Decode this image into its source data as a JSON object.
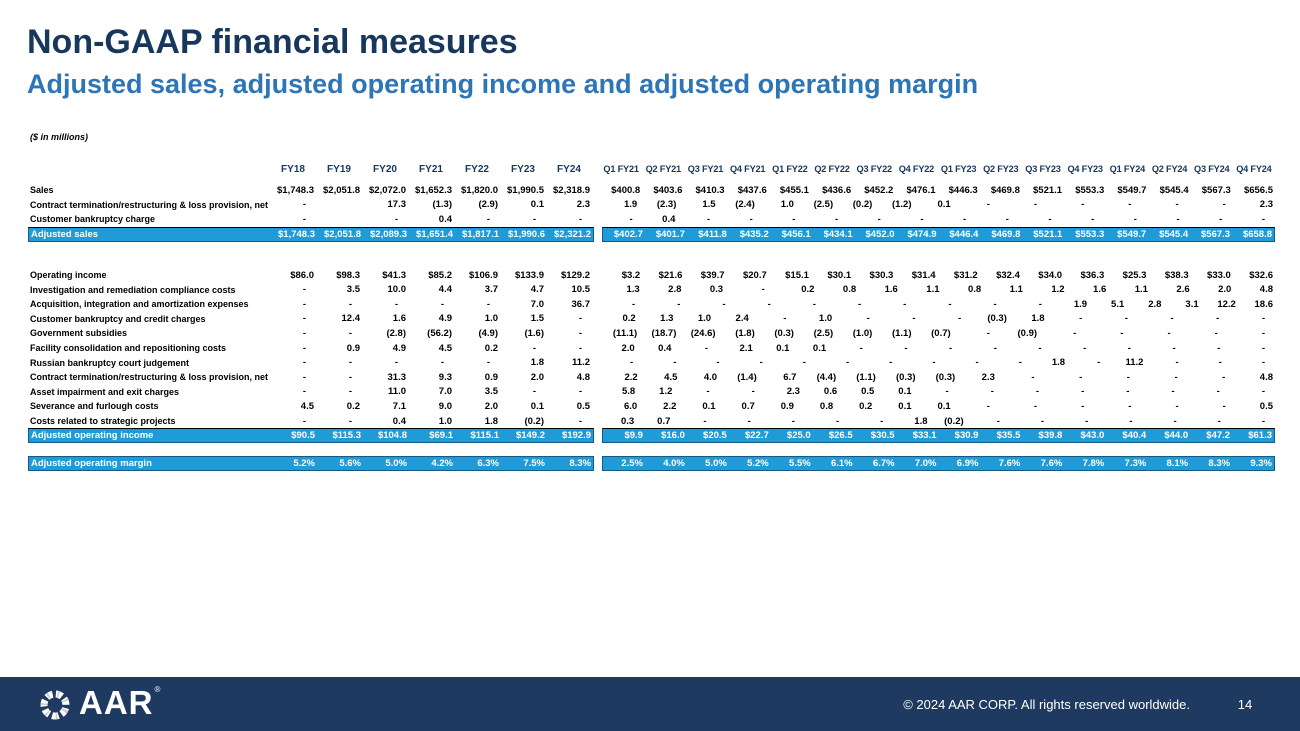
{
  "slide": {
    "title": "Non-GAAP financial measures",
    "subtitle": "Adjusted sales, adjusted operating income and adjusted operating margin",
    "units_note": "($ in millions)"
  },
  "colors": {
    "title_navy": "#17375d",
    "subtitle_blue": "#2e75b6",
    "highlight_blue": "#1f9cd8",
    "footer_navy": "#1f3a60"
  },
  "table": {
    "annual_headers": [
      "FY18",
      "FY19",
      "FY20",
      "FY21",
      "FY22",
      "FY23",
      "FY24"
    ],
    "quarterly_headers": [
      "Q1 FY21",
      "Q2 FY21",
      "Q3 FY21",
      "Q4 FY21",
      "Q1 FY22",
      "Q2 FY22",
      "Q3 FY22",
      "Q4 FY22",
      "Q1 FY23",
      "Q2 FY23",
      "Q3 FY23",
      "Q4 FY23",
      "Q1 FY24",
      "Q2 FY24",
      "Q3 FY24",
      "Q4 FY24"
    ],
    "rows": [
      {
        "label": "Sales",
        "type": "normal",
        "annual": [
          "$1,748.3",
          "$2,051.8",
          "$2,072.0",
          "$1,652.3",
          "$1,820.0",
          "$1,990.5",
          "$2,318.9"
        ],
        "quarterly": [
          "$400.8",
          "$403.6",
          "$410.3",
          "$437.6",
          "$455.1",
          "$436.6",
          "$452.2",
          "$476.1",
          "$446.3",
          "$469.8",
          "$521.1",
          "$553.3",
          "$549.7",
          "$545.4",
          "$567.3",
          "$656.5"
        ]
      },
      {
        "label": "Contract termination/restructuring & loss provision, net",
        "type": "normal",
        "annual": [
          "-",
          "",
          "17.3",
          "(1.3)",
          "(2.9)",
          "0.1",
          "2.3"
        ],
        "quarterly": [
          "1.9",
          "(2.3)",
          "1.5",
          "(2.4)",
          "1.0",
          "(2.5)",
          "(0.2)",
          "(1.2)",
          "0.1",
          "-",
          "-",
          "-",
          "-",
          "-",
          "-",
          "2.3"
        ]
      },
      {
        "label": "Customer bankruptcy charge",
        "type": "normal",
        "annual": [
          "-",
          "",
          "-",
          "0.4",
          "-",
          "-",
          "-"
        ],
        "quarterly": [
          "-",
          "0.4",
          "-",
          "-",
          "-",
          "-",
          "-",
          "-",
          "-",
          "-",
          "-",
          "-",
          "-",
          "-",
          "-",
          "-"
        ]
      },
      {
        "label": "Adjusted sales",
        "type": "highlight-total",
        "annual": [
          "$1,748.3",
          "$2,051.8",
          "$2,089.3",
          "$1,651.4",
          "$1,817.1",
          "$1,990.6",
          "$2,321.2"
        ],
        "quarterly": [
          "$402.7",
          "$401.7",
          "$411.8",
          "$435.2",
          "$456.1",
          "$434.1",
          "$452.0",
          "$474.9",
          "$446.4",
          "$469.8",
          "$521.1",
          "$553.3",
          "$549.7",
          "$545.4",
          "$567.3",
          "$658.8"
        ]
      },
      {
        "type": "spacer",
        "size": "lg"
      },
      {
        "label": "Operating income",
        "type": "normal",
        "annual": [
          "$86.0",
          "$98.3",
          "$41.3",
          "$85.2",
          "$106.9",
          "$133.9",
          "$129.2"
        ],
        "quarterly": [
          "$3.2",
          "$21.6",
          "$39.7",
          "$20.7",
          "$15.1",
          "$30.1",
          "$30.3",
          "$31.4",
          "$31.2",
          "$32.4",
          "$34.0",
          "$36.3",
          "$25.3",
          "$38.3",
          "$33.0",
          "$32.6"
        ]
      },
      {
        "label": "Investigation and remediation compliance costs",
        "type": "normal",
        "annual": [
          "-",
          "3.5",
          "10.0",
          "4.4",
          "3.7",
          "4.7",
          "10.5"
        ],
        "quarterly": [
          "1.3",
          "2.8",
          "0.3",
          "-",
          "0.2",
          "0.8",
          "1.6",
          "1.1",
          "0.8",
          "1.1",
          "1.2",
          "1.6",
          "1.1",
          "2.6",
          "2.0",
          "4.8"
        ]
      },
      {
        "label": "Acquisition, integration and amortization expenses",
        "type": "normal",
        "annual": [
          "-",
          "-",
          "-",
          "-",
          "-",
          "7.0",
          "36.7"
        ],
        "quarterly": [
          "-",
          "-",
          "-",
          "-",
          "-",
          "-",
          "-",
          "-",
          "-",
          "-",
          "1.9",
          "5.1",
          "2.8",
          "3.1",
          "12.2",
          "18.6"
        ]
      },
      {
        "label": "Customer bankruptcy and credit charges",
        "type": "normal",
        "annual": [
          "-",
          "12.4",
          "1.6",
          "4.9",
          "1.0",
          "1.5",
          "-"
        ],
        "quarterly": [
          "0.2",
          "1.3",
          "1.0",
          "2.4",
          "-",
          "1.0",
          "-",
          "-",
          "-",
          "(0.3)",
          "1.8",
          "-",
          "-",
          "-",
          "-",
          "-"
        ]
      },
      {
        "label": "Government subsidies",
        "type": "normal",
        "annual": [
          "-",
          "-",
          "(2.8)",
          "(56.2)",
          "(4.9)",
          "(1.6)",
          "-"
        ],
        "quarterly": [
          "(11.1)",
          "(18.7)",
          "(24.6)",
          "(1.8)",
          "(0.3)",
          "(2.5)",
          "(1.0)",
          "(1.1)",
          "(0.7)",
          "-",
          "(0.9)",
          "-",
          "-",
          "-",
          "-",
          "-"
        ]
      },
      {
        "label": "Facility consolidation and repositioning costs",
        "type": "normal",
        "annual": [
          "-",
          "0.9",
          "4.9",
          "4.5",
          "0.2",
          "-",
          "-"
        ],
        "quarterly": [
          "2.0",
          "0.4",
          "-",
          "2.1",
          "0.1",
          "0.1",
          "-",
          "-",
          "-",
          "-",
          "-",
          "-",
          "-",
          "-",
          "-",
          "-"
        ]
      },
      {
        "label": "Russian bankruptcy court judgement",
        "type": "normal",
        "annual": [
          "-",
          "-",
          "-",
          "-",
          "-",
          "1.8",
          "11.2"
        ],
        "quarterly": [
          "-",
          "-",
          "-",
          "-",
          "-",
          "-",
          "-",
          "-",
          "-",
          "-",
          "1.8",
          "-",
          "11.2",
          "-",
          "-",
          "-"
        ]
      },
      {
        "label": "Contract termination/restructuring & loss provision, net",
        "type": "normal",
        "annual": [
          "-",
          "-",
          "31.3",
          "9.3",
          "0.9",
          "2.0",
          "4.8"
        ],
        "quarterly": [
          "2.2",
          "4.5",
          "4.0",
          "(1.4)",
          "6.7",
          "(4.4)",
          "(1.1)",
          "(0.3)",
          "(0.3)",
          "2.3",
          "-",
          "-",
          "-",
          "-",
          "-",
          "4.8"
        ]
      },
      {
        "label": "Asset impairment and exit charges",
        "type": "normal",
        "annual": [
          "-",
          "-",
          "11.0",
          "7.0",
          "3.5",
          "-",
          "-"
        ],
        "quarterly": [
          "5.8",
          "1.2",
          "-",
          "-",
          "2.3",
          "0.6",
          "0.5",
          "0.1",
          "-",
          "-",
          "-",
          "-",
          "-",
          "-",
          "-",
          "-"
        ]
      },
      {
        "label": "Severance and furlough costs",
        "type": "normal",
        "annual": [
          "4.5",
          "0.2",
          "7.1",
          "9.0",
          "2.0",
          "0.1",
          "0.5"
        ],
        "quarterly": [
          "6.0",
          "2.2",
          "0.1",
          "0.7",
          "0.9",
          "0.8",
          "0.2",
          "0.1",
          "0.1",
          "-",
          "-",
          "-",
          "-",
          "-",
          "-",
          "0.5"
        ]
      },
      {
        "label": "Costs related to strategic projects",
        "type": "normal",
        "annual": [
          "-",
          "-",
          "0.4",
          "1.0",
          "1.8",
          "(0.2)",
          "-"
        ],
        "quarterly": [
          "0.3",
          "0.7",
          "-",
          "-",
          "-",
          "-",
          "-",
          "1.8",
          "(0.2)",
          "-",
          "-",
          "-",
          "-",
          "-",
          "-",
          "-"
        ]
      },
      {
        "label": "Adjusted operating income",
        "type": "highlight-total",
        "annual": [
          "$90.5",
          "$115.3",
          "$104.8",
          "$69.1",
          "$115.1",
          "$149.2",
          "$192.9"
        ],
        "quarterly": [
          "$9.9",
          "$16.0",
          "$20.5",
          "$22.7",
          "$25.0",
          "$26.5",
          "$30.5",
          "$33.1",
          "$30.9",
          "$35.5",
          "$39.8",
          "$43.0",
          "$40.4",
          "$44.0",
          "$47.2",
          "$61.3"
        ]
      },
      {
        "type": "spacer",
        "size": "sm"
      },
      {
        "label": "Adjusted operating margin",
        "type": "highlight",
        "annual": [
          "5.2%",
          "5.6%",
          "5.0%",
          "4.2%",
          "6.3%",
          "7.5%",
          "8.3%"
        ],
        "quarterly": [
          "2.5%",
          "4.0%",
          "5.0%",
          "5.2%",
          "5.5%",
          "6.1%",
          "6.7%",
          "7.0%",
          "6.9%",
          "7.6%",
          "7.6%",
          "7.8%",
          "7.3%",
          "8.1%",
          "8.3%",
          "9.3%"
        ]
      }
    ]
  },
  "footer": {
    "logo_text": "AAR",
    "reg_mark": "®",
    "copyright": "© 2024 AAR CORP. All rights reserved worldwide.",
    "page_number": "14"
  }
}
